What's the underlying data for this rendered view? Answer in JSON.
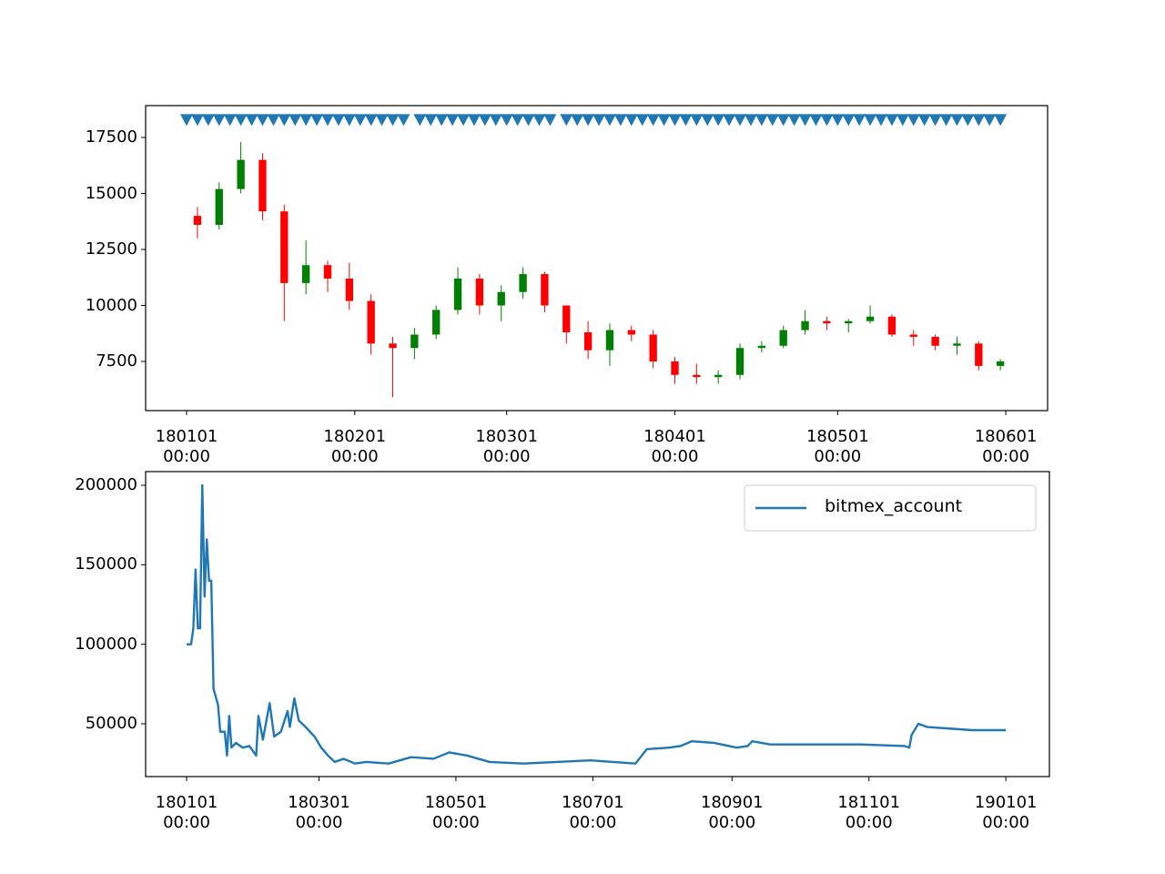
{
  "chart_data": [
    {
      "type": "candlestick",
      "x": [
        0,
        4,
        8,
        12,
        16,
        20,
        24,
        28,
        32,
        36,
        40,
        44,
        48,
        52,
        56,
        60,
        64,
        68,
        72,
        76,
        80,
        84,
        88,
        92,
        96,
        100,
        104,
        108,
        112,
        116,
        120,
        124,
        128,
        132,
        136,
        140,
        144,
        148
      ],
      "open": [
        14000,
        13600,
        15200,
        16500,
        14200,
        11000,
        11800,
        11200,
        10200,
        8300,
        8100,
        8700,
        9800,
        11200,
        10000,
        10600,
        11400,
        10000,
        8800,
        8000,
        8900,
        8700,
        7500,
        6900,
        6800,
        6900,
        8100,
        8200,
        8900,
        9300,
        9200,
        9300,
        9500,
        8700,
        8600,
        8200,
        8300,
        7300
      ],
      "high": [
        14400,
        15500,
        17300,
        16800,
        14500,
        12900,
        12000,
        11900,
        10500,
        8600,
        9000,
        10000,
        11700,
        11400,
        10900,
        11700,
        11500,
        10000,
        9300,
        9200,
        9100,
        8900,
        7700,
        7400,
        7100,
        8300,
        8400,
        9100,
        9800,
        9500,
        9400,
        10000,
        9600,
        8900,
        8700,
        8600,
        8400,
        7600
      ],
      "low": [
        13000,
        13400,
        15000,
        13800,
        9300,
        10500,
        10600,
        9800,
        7800,
        5900,
        7600,
        8500,
        9600,
        9600,
        9300,
        10300,
        9700,
        8300,
        7600,
        7300,
        8400,
        7200,
        6500,
        6500,
        6500,
        6700,
        7900,
        8100,
        8700,
        8900,
        8800,
        9200,
        8600,
        8200,
        8000,
        7800,
        7100,
        7100
      ],
      "close": [
        13600,
        15200,
        16500,
        14200,
        11000,
        11800,
        11200,
        10200,
        8300,
        8100,
        8700,
        9800,
        11200,
        10000,
        10600,
        11400,
        10000,
        8800,
        8000,
        8900,
        8700,
        7500,
        6900,
        6800,
        6900,
        8100,
        8200,
        8900,
        9300,
        9200,
        9300,
        9500,
        8700,
        8600,
        8200,
        8300,
        7300,
        7500
      ],
      "period": 4,
      "up_color": "#008000",
      "down_color": "#ff0000",
      "signals": {
        "color": "#1f77b4",
        "x": [
          0,
          2,
          4,
          6,
          8,
          10,
          12,
          14,
          16,
          18,
          20,
          22,
          24,
          26,
          28,
          30,
          32,
          34,
          36,
          38,
          40,
          43,
          45,
          47,
          49,
          51,
          53,
          55,
          57,
          59,
          61,
          63,
          65,
          67,
          70,
          72,
          74,
          76,
          78,
          80,
          82,
          84,
          86,
          88,
          90,
          92,
          94,
          96,
          98,
          100,
          102,
          104,
          106,
          108,
          110,
          112,
          114,
          116,
          118,
          120,
          122,
          124,
          126,
          128,
          130,
          132,
          134,
          136,
          138,
          140,
          142,
          144,
          146,
          148,
          150
        ],
        "y": [
          18300,
          18300,
          18300,
          18300,
          18300,
          18300,
          18300,
          18300,
          18300,
          18300,
          18300,
          18300,
          18300,
          18300,
          18300,
          18300,
          18300,
          18300,
          18300,
          18300,
          18300,
          18300,
          18300,
          18300,
          18300,
          18300,
          18300,
          18300,
          18300,
          18300,
          18300,
          18300,
          18300,
          18300,
          18300,
          18300,
          18300,
          18300,
          18300,
          18300,
          18300,
          18300,
          18300,
          18300,
          18300,
          18300,
          18300,
          18300,
          18300,
          18300,
          18300,
          18300,
          18300,
          18300,
          18300,
          18300,
          18300,
          18300,
          18300,
          18300,
          18300,
          18300,
          18300,
          18300,
          18300,
          18300,
          18300,
          18300,
          18300,
          18300,
          18300,
          18300,
          18300,
          18300,
          18300
        ]
      },
      "xlim": [
        -7.55,
        158.7
      ],
      "ylim": [
        5305,
        18923
      ],
      "xticks": [
        {
          "value": 0,
          "label": "180101\n00:00"
        },
        {
          "value": 31,
          "label": "180201\n00:00"
        },
        {
          "value": 59,
          "label": "180301\n00:00"
        },
        {
          "value": 90,
          "label": "180401\n00:00"
        },
        {
          "value": 120,
          "label": "180501\n00:00"
        },
        {
          "value": 151,
          "label": "180601\n00:00"
        }
      ],
      "yticks": [
        7500,
        10000,
        12500,
        15000,
        17500
      ]
    },
    {
      "type": "line",
      "series": [
        {
          "name": "bitmex_account",
          "color": "#1f77b4",
          "x": [
            0,
            2,
            3,
            4,
            5,
            6,
            7,
            8,
            9,
            10,
            11,
            12,
            14,
            15,
            17,
            18,
            19,
            20,
            22,
            25,
            28,
            31,
            32,
            34,
            37,
            39,
            42,
            45,
            46,
            48,
            50,
            53,
            57,
            60,
            63,
            66,
            70,
            75,
            80,
            90,
            100,
            110,
            117,
            125,
            135,
            150,
            165,
            180,
            190,
            200,
            205,
            215,
            220,
            225,
            235,
            245,
            250,
            252,
            260,
            280,
            300,
            320,
            322,
            323,
            326,
            330,
            340,
            350,
            365
          ],
          "values": [
            100000,
            100000,
            110000,
            147000,
            110000,
            110000,
            200000,
            130000,
            166000,
            140000,
            140000,
            72000,
            62000,
            45000,
            45000,
            30000,
            55000,
            35000,
            38000,
            35000,
            36000,
            30000,
            55000,
            40000,
            63000,
            42000,
            45000,
            58000,
            48000,
            66000,
            52000,
            48000,
            42000,
            35000,
            30000,
            26000,
            28000,
            25000,
            26000,
            25000,
            29000,
            28000,
            32000,
            30000,
            26000,
            25000,
            26000,
            27000,
            26000,
            25000,
            34000,
            35000,
            36000,
            39000,
            38000,
            35000,
            36000,
            39000,
            37000,
            37000,
            37000,
            36000,
            35000,
            43000,
            50000,
            48000,
            47000,
            46000,
            46000
          ]
        }
      ],
      "legend": "upper right",
      "xlim": [
        -18.25,
        384.4
      ],
      "ylim": [
        16800,
        208600
      ],
      "xticks": [
        {
          "value": 0,
          "label": "180101\n00:00"
        },
        {
          "value": 59,
          "label": "180301\n00:00"
        },
        {
          "value": 120,
          "label": "180501\n00:00"
        },
        {
          "value": 181,
          "label": "180701\n00:00"
        },
        {
          "value": 243,
          "label": "180901\n00:00"
        },
        {
          "value": 304,
          "label": "181101\n00:00"
        },
        {
          "value": 365,
          "label": "190101\n00:00"
        }
      ],
      "yticks": [
        50000,
        100000,
        150000,
        200000
      ]
    }
  ]
}
